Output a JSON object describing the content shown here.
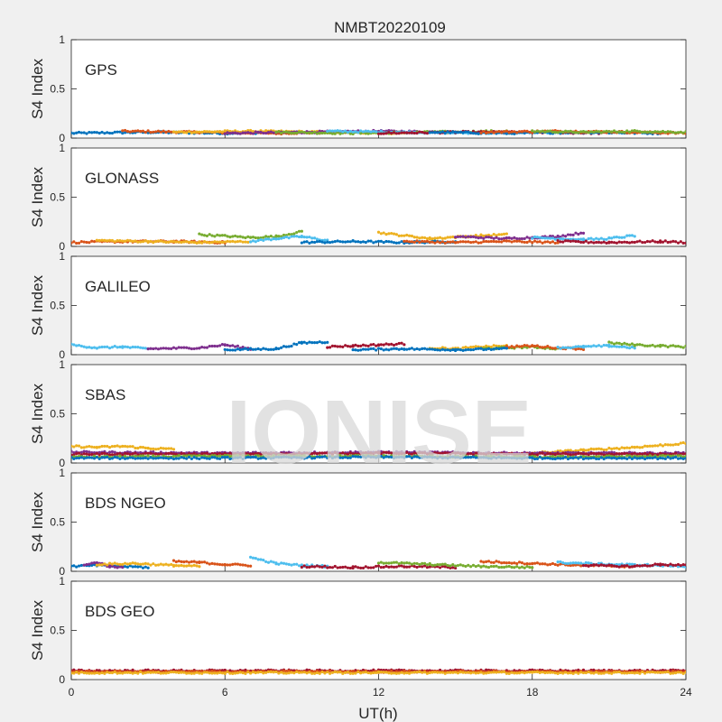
{
  "chart_data": {
    "type": "scatter",
    "title": "NMBT20220109",
    "xlabel": "UT(h)",
    "ylabel": "S4 Index",
    "xlim": [
      0,
      24
    ],
    "xticks": [
      0,
      6,
      12,
      18,
      24
    ],
    "ylim": [
      0,
      1
    ],
    "yticks": [
      0,
      0.5,
      1
    ],
    "ytick_labels": [
      "0",
      "0.5",
      "1"
    ],
    "grid": false,
    "legend": "none",
    "watermark": "IONISE",
    "series_colors": [
      "#0072BD",
      "#D95319",
      "#EDB120",
      "#7E2F8E",
      "#77AC30",
      "#4DBEEE",
      "#A2142F"
    ],
    "panels": [
      {
        "label": "GPS",
        "typical_s4": 0.06,
        "tracks": [
          {
            "color": "#0072BD",
            "x": [
              0.0,
              3.0,
              6.0,
              9.0
            ],
            "y": [
              0.05,
              0.06,
              0.05,
              0.06
            ]
          },
          {
            "color": "#D95319",
            "x": [
              2.0,
              5.0,
              8.0,
              11.0
            ],
            "y": [
              0.07,
              0.06,
              0.05,
              0.06
            ]
          },
          {
            "color": "#EDB120",
            "x": [
              4.0,
              7.0,
              10.0,
              13.0
            ],
            "y": [
              0.06,
              0.07,
              0.06,
              0.05
            ]
          },
          {
            "color": "#7E2F8E",
            "x": [
              6.0,
              9.0,
              12.0,
              15.0
            ],
            "y": [
              0.05,
              0.06,
              0.07,
              0.06
            ]
          },
          {
            "color": "#77AC30",
            "x": [
              8.0,
              11.0,
              14.0,
              17.0
            ],
            "y": [
              0.06,
              0.05,
              0.06,
              0.07
            ]
          },
          {
            "color": "#4DBEEE",
            "x": [
              10.0,
              13.0,
              16.0,
              19.0
            ],
            "y": [
              0.07,
              0.06,
              0.05,
              0.06
            ]
          },
          {
            "color": "#A2142F",
            "x": [
              12.0,
              15.0,
              18.0,
              21.0
            ],
            "y": [
              0.05,
              0.06,
              0.06,
              0.05
            ]
          },
          {
            "color": "#0072BD",
            "x": [
              14.0,
              17.0,
              20.0,
              23.0
            ],
            "y": [
              0.06,
              0.05,
              0.06,
              0.05
            ]
          },
          {
            "color": "#D95319",
            "x": [
              16.0,
              19.0,
              22.0,
              24.0
            ],
            "y": [
              0.06,
              0.07,
              0.06,
              0.05
            ]
          },
          {
            "color": "#77AC30",
            "x": [
              18.0,
              20.0,
              22.0,
              24.0
            ],
            "y": [
              0.07,
              0.06,
              0.07,
              0.06
            ]
          }
        ]
      },
      {
        "label": "GLONASS",
        "typical_s4": 0.05,
        "tracks": [
          {
            "color": "#D95319",
            "x": [
              0.0,
              2.0,
              4.0,
              6.0
            ],
            "y": [
              0.04,
              0.05,
              0.05,
              0.04
            ]
          },
          {
            "color": "#EDB120",
            "x": [
              1.0,
              3.0,
              5.0,
              7.0
            ],
            "y": [
              0.06,
              0.05,
              0.04,
              0.05
            ]
          },
          {
            "color": "#77AC30",
            "x": [
              5.0,
              7.0,
              8.0,
              9.0
            ],
            "y": [
              0.12,
              0.09,
              0.1,
              0.15
            ]
          },
          {
            "color": "#4DBEEE",
            "x": [
              7.0,
              8.0,
              9.0,
              10.0
            ],
            "y": [
              0.05,
              0.08,
              0.1,
              0.06
            ]
          },
          {
            "color": "#0072BD",
            "x": [
              9.0,
              11.0,
              13.0,
              15.0
            ],
            "y": [
              0.04,
              0.05,
              0.04,
              0.05
            ]
          },
          {
            "color": "#EDB120",
            "x": [
              12.0,
              14.0,
              16.0,
              17.0
            ],
            "y": [
              0.14,
              0.08,
              0.11,
              0.12
            ]
          },
          {
            "color": "#7E2F8E",
            "x": [
              15.0,
              17.0,
              19.0,
              20.0
            ],
            "y": [
              0.1,
              0.08,
              0.1,
              0.14
            ]
          },
          {
            "color": "#4DBEEE",
            "x": [
              18.0,
              20.0,
              21.0,
              22.0
            ],
            "y": [
              0.09,
              0.07,
              0.08,
              0.11
            ]
          },
          {
            "color": "#A2142F",
            "x": [
              19.0,
              21.0,
              23.0,
              24.0
            ],
            "y": [
              0.05,
              0.04,
              0.05,
              0.04
            ]
          },
          {
            "color": "#D95319",
            "x": [
              13.0,
              15.0,
              17.0,
              19.0
            ],
            "y": [
              0.05,
              0.04,
              0.05,
              0.04
            ]
          }
        ]
      },
      {
        "label": "GALILEO",
        "typical_s4": 0.06,
        "tracks": [
          {
            "color": "#4DBEEE",
            "x": [
              0.0,
              1.0,
              2.0,
              3.0
            ],
            "y": [
              0.1,
              0.07,
              0.08,
              0.06
            ]
          },
          {
            "color": "#7E2F8E",
            "x": [
              3.0,
              5.0,
              6.0,
              7.0
            ],
            "y": [
              0.06,
              0.07,
              0.1,
              0.06
            ]
          },
          {
            "color": "#0072BD",
            "x": [
              6.0,
              8.0,
              9.0,
              10.0
            ],
            "y": [
              0.05,
              0.06,
              0.12,
              0.13
            ]
          },
          {
            "color": "#A2142F",
            "x": [
              10.0,
              11.0,
              12.0,
              13.0
            ],
            "y": [
              0.08,
              0.09,
              0.1,
              0.11
            ]
          },
          {
            "color": "#EDB120",
            "x": [
              14.0,
              15.0,
              16.0,
              17.0
            ],
            "y": [
              0.07,
              0.06,
              0.08,
              0.09
            ]
          },
          {
            "color": "#77AC30",
            "x": [
              16.0,
              17.0,
              18.0,
              19.0
            ],
            "y": [
              0.06,
              0.07,
              0.08,
              0.06
            ]
          },
          {
            "color": "#D95319",
            "x": [
              17.0,
              18.0,
              19.0,
              20.0
            ],
            "y": [
              0.08,
              0.09,
              0.07,
              0.06
            ]
          },
          {
            "color": "#4DBEEE",
            "x": [
              19.0,
              20.0,
              21.0,
              22.0
            ],
            "y": [
              0.07,
              0.08,
              0.09,
              0.07
            ]
          },
          {
            "color": "#77AC30",
            "x": [
              21.0,
              22.0,
              23.0,
              24.0
            ],
            "y": [
              0.12,
              0.1,
              0.09,
              0.08
            ]
          },
          {
            "color": "#0072BD",
            "x": [
              11.0,
              13.0,
              15.0,
              17.0
            ],
            "y": [
              0.05,
              0.06,
              0.05,
              0.06
            ]
          }
        ]
      },
      {
        "label": "SBAS",
        "typical_s4": 0.1,
        "tracks": [
          {
            "color": "#EDB120",
            "x": [
              0.0,
              1.0,
              2.0,
              3.0,
              4.0
            ],
            "y": [
              0.17,
              0.16,
              0.17,
              0.15,
              0.14
            ]
          },
          {
            "color": "#EDB120",
            "x": [
              18.0,
              20.0,
              22.0,
              23.0,
              24.0
            ],
            "y": [
              0.1,
              0.13,
              0.16,
              0.18,
              0.2
            ]
          },
          {
            "color": "#7E2F8E",
            "x": [
              0.0,
              6.0,
              12.0,
              18.0,
              24.0
            ],
            "y": [
              0.11,
              0.1,
              0.11,
              0.1,
              0.1
            ]
          },
          {
            "color": "#A2142F",
            "x": [
              0.0,
              6.0,
              12.0,
              18.0,
              24.0
            ],
            "y": [
              0.09,
              0.09,
              0.1,
              0.09,
              0.09
            ]
          },
          {
            "color": "#77AC30",
            "x": [
              0.0,
              6.0,
              12.0,
              18.0,
              24.0
            ],
            "y": [
              0.06,
              0.07,
              0.07,
              0.06,
              0.07
            ]
          },
          {
            "color": "#0072BD",
            "x": [
              0.0,
              6.0,
              12.0,
              18.0,
              24.0
            ],
            "y": [
              0.05,
              0.05,
              0.06,
              0.05,
              0.05
            ]
          }
        ]
      },
      {
        "label": "BDS NGEO",
        "typical_s4": 0.05,
        "tracks": [
          {
            "color": "#0072BD",
            "x": [
              0.0,
              1.0,
              2.0,
              3.0
            ],
            "y": [
              0.05,
              0.06,
              0.05,
              0.04
            ]
          },
          {
            "color": "#7E2F8E",
            "x": [
              0.5,
              1.0,
              1.5,
              2.0
            ],
            "y": [
              0.06,
              0.09,
              0.05,
              0.04
            ]
          },
          {
            "color": "#EDB120",
            "x": [
              1.0,
              2.5,
              4.0,
              5.0
            ],
            "y": [
              0.07,
              0.08,
              0.06,
              0.05
            ]
          },
          {
            "color": "#D95319",
            "x": [
              4.0,
              5.0,
              6.0,
              7.0
            ],
            "y": [
              0.1,
              0.09,
              0.07,
              0.06
            ]
          },
          {
            "color": "#4DBEEE",
            "x": [
              7.0,
              8.0,
              9.0,
              10.0
            ],
            "y": [
              0.14,
              0.08,
              0.06,
              0.05
            ]
          },
          {
            "color": "#A2142F",
            "x": [
              9.0,
              11.0,
              13.0,
              15.0
            ],
            "y": [
              0.05,
              0.04,
              0.05,
              0.04
            ]
          },
          {
            "color": "#77AC30",
            "x": [
              12.0,
              14.0,
              16.0,
              18.0
            ],
            "y": [
              0.09,
              0.07,
              0.05,
              0.04
            ]
          },
          {
            "color": "#D95319",
            "x": [
              16.0,
              18.0,
              20.0,
              22.0
            ],
            "y": [
              0.1,
              0.08,
              0.06,
              0.05
            ]
          },
          {
            "color": "#4DBEEE",
            "x": [
              19.0,
              21.0,
              23.0,
              24.0
            ],
            "y": [
              0.09,
              0.07,
              0.06,
              0.05
            ]
          },
          {
            "color": "#A2142F",
            "x": [
              20.0,
              22.0,
              23.0,
              24.0
            ],
            "y": [
              0.06,
              0.05,
              0.07,
              0.06
            ]
          }
        ]
      },
      {
        "label": "BDS GEO",
        "typical_s4": 0.08,
        "tracks": [
          {
            "color": "#A2142F",
            "x": [
              0.0,
              6.0,
              12.0,
              18.0,
              24.0
            ],
            "y": [
              0.09,
              0.09,
              0.09,
              0.09,
              0.09
            ]
          },
          {
            "color": "#D95319",
            "x": [
              0.0,
              6.0,
              12.0,
              18.0,
              24.0
            ],
            "y": [
              0.08,
              0.08,
              0.08,
              0.08,
              0.08
            ]
          },
          {
            "color": "#EDB120",
            "x": [
              0.0,
              6.0,
              12.0,
              18.0,
              24.0
            ],
            "y": [
              0.07,
              0.07,
              0.07,
              0.07,
              0.07
            ]
          }
        ]
      }
    ]
  }
}
